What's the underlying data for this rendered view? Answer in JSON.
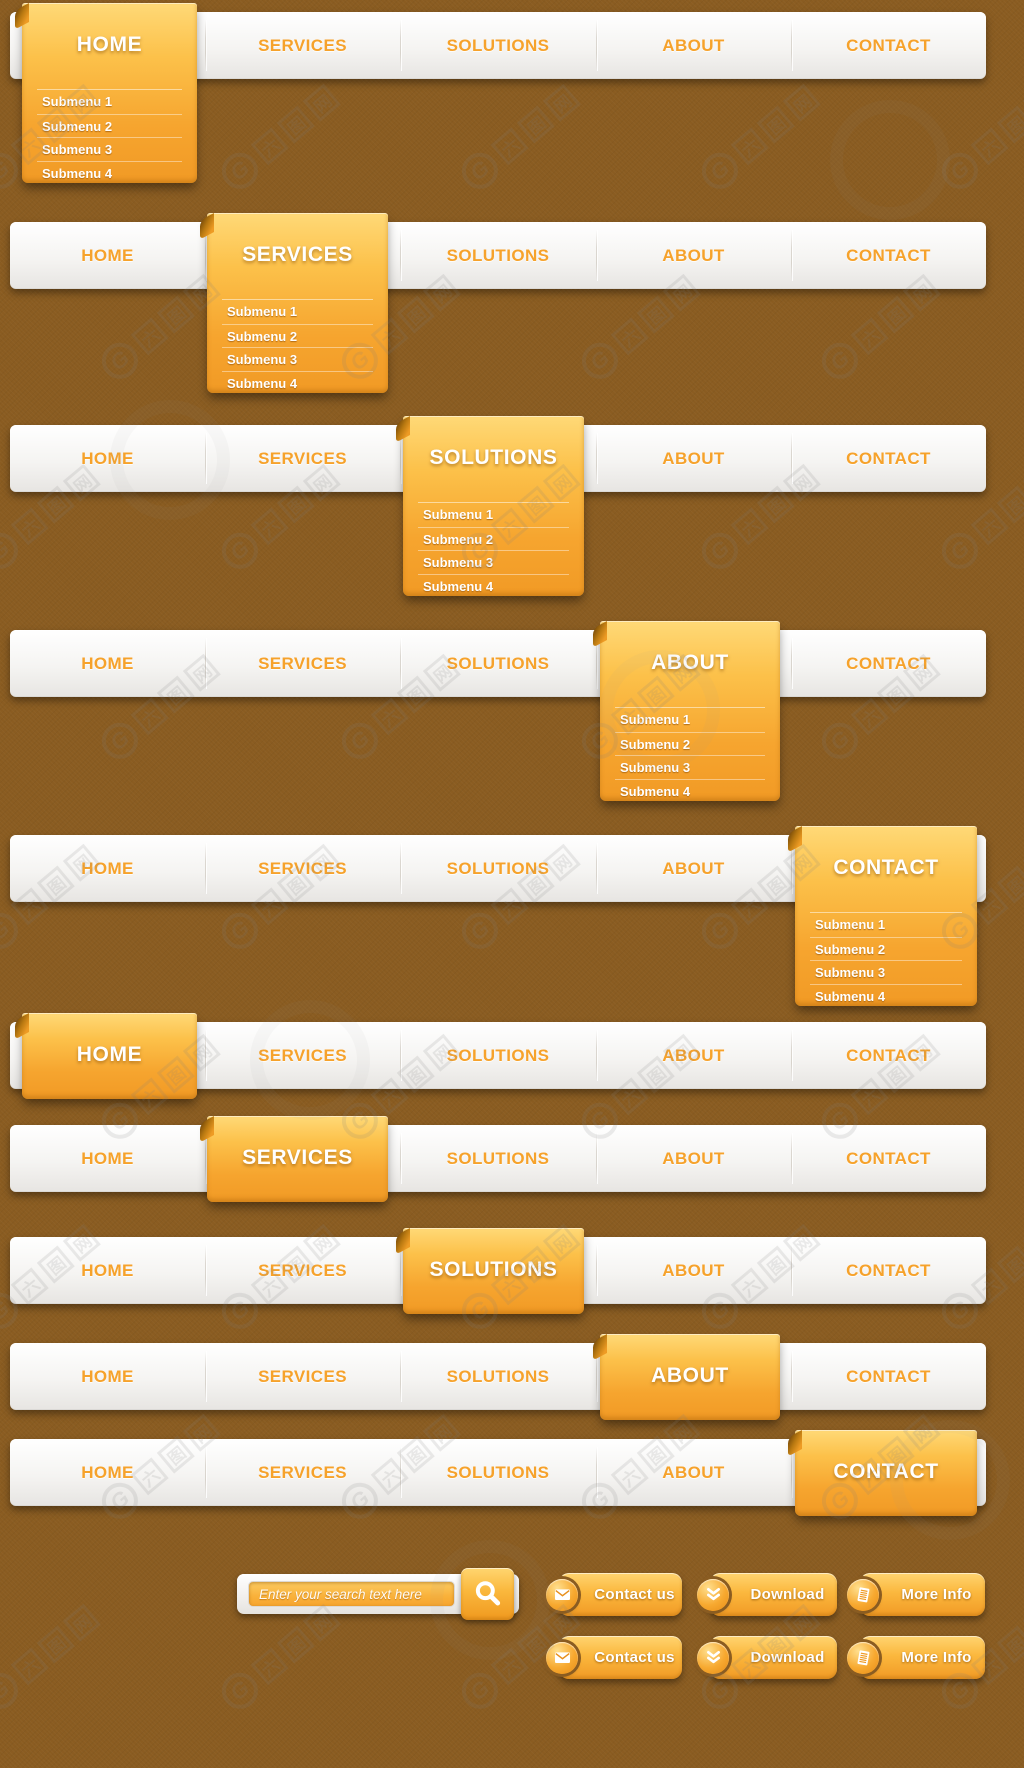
{
  "watermark": {
    "text": "六图网",
    "logo_glyph": "G"
  },
  "menu": {
    "items": [
      "HOME",
      "SERVICES",
      "SOLUTIONS",
      "ABOUT",
      "CONTACT"
    ],
    "submenu_items": [
      "Submenu 1",
      "Submenu 2",
      "Submenu 3",
      "Submenu 4"
    ]
  },
  "navbars": [
    {
      "active_item": "HOME",
      "active_index": 0,
      "has_submenu": true
    },
    {
      "active_item": "SERVICES",
      "active_index": 1,
      "has_submenu": true
    },
    {
      "active_item": "SOLUTIONS",
      "active_index": 2,
      "has_submenu": true
    },
    {
      "active_item": "ABOUT",
      "active_index": 3,
      "has_submenu": true
    },
    {
      "active_item": "CONTACT",
      "active_index": 4,
      "has_submenu": true
    },
    {
      "active_item": "HOME",
      "active_index": 0,
      "has_submenu": false
    },
    {
      "active_item": "SERVICES",
      "active_index": 1,
      "has_submenu": false
    },
    {
      "active_item": "SOLUTIONS",
      "active_index": 2,
      "has_submenu": false
    },
    {
      "active_item": "ABOUT",
      "active_index": 3,
      "has_submenu": false
    },
    {
      "active_item": "CONTACT",
      "active_index": 4,
      "has_submenu": false
    }
  ],
  "search": {
    "placeholder": "Enter your search text here",
    "button_icon": "magnifier-icon"
  },
  "action_buttons": [
    {
      "label": "Contact us",
      "icon": "envelope-icon"
    },
    {
      "label": "Download",
      "icon": "download-chevrons-icon"
    },
    {
      "label": "More Info",
      "icon": "document-icon"
    }
  ],
  "action_button_rows": 2,
  "colors": {
    "background": "#8a5c21",
    "bar_gradient_top": "#ffffff",
    "bar_gradient_bottom": "#e7e5e2",
    "accent_orange": "#f6a22b",
    "tab_gradient_top": "#ffd977",
    "tab_gradient_bottom": "#f19a25",
    "active_label": "#ffffff",
    "submenu_text": "#ffffff"
  }
}
